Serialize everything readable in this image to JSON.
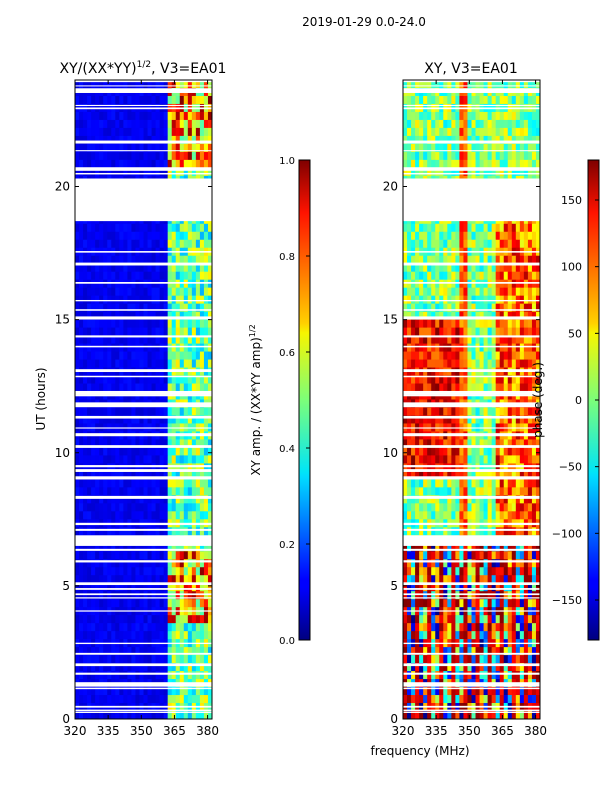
{
  "figure_title": "2019-01-29 0.0-24.0",
  "xlabel": "frequency (MHz)",
  "chart_data": [
    {
      "type": "heatmap",
      "title_prefix": "XY/(XX*YY)",
      "title_exp": "1/2",
      "title_suffix": ", V3=EA01",
      "xlabel": "frequency (MHz)",
      "ylabel": "UT (hours)",
      "xlim": [
        320,
        382
      ],
      "ylim": [
        0,
        24
      ],
      "xticks": [
        "320",
        "335",
        "350",
        "365",
        "380"
      ],
      "yticks": [
        "0",
        "5",
        "10",
        "15",
        "20"
      ],
      "blank_bands_hours": [
        [
          18.7,
          20.3
        ],
        [
          6.6,
          6.9
        ]
      ],
      "colorbar": {
        "label": "XY amp. / (XX*YY amp)",
        "label_exp": "1/2",
        "range": [
          0.0,
          1.0
        ],
        "ticks": [
          "0.0",
          "0.2",
          "0.4",
          "0.6",
          "0.8",
          "1.0"
        ],
        "colormap": "jet"
      }
    },
    {
      "type": "heatmap",
      "title": "XY, V3=EA01",
      "xlabel": "frequency (MHz)",
      "ylabel": "",
      "xlim": [
        320,
        382
      ],
      "ylim": [
        0,
        24
      ],
      "xticks": [
        "320",
        "335",
        "350",
        "365",
        "380"
      ],
      "yticks": [
        "0",
        "5",
        "10",
        "15",
        "20"
      ],
      "blank_bands_hours": [
        [
          18.7,
          20.3
        ],
        [
          6.6,
          6.9
        ]
      ],
      "colorbar": {
        "label": "phase (deg.)",
        "range": [
          -180,
          180
        ],
        "ticks": [
          "-150",
          "-100",
          "-50",
          "0",
          "50",
          "100",
          "150"
        ],
        "colormap": "jet"
      }
    }
  ]
}
